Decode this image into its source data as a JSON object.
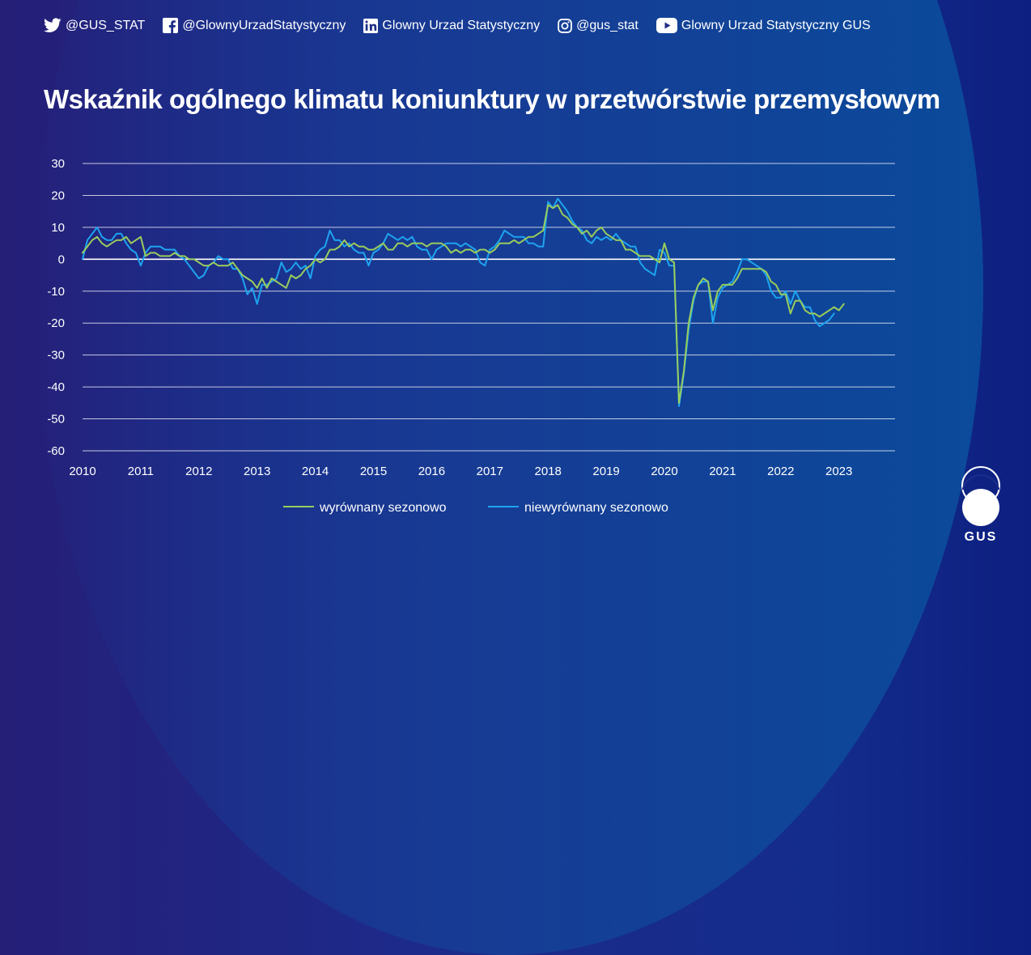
{
  "social": [
    {
      "icon": "twitter-icon",
      "label": "@GUS_STAT"
    },
    {
      "icon": "facebook-icon",
      "label": "@GlownyUrzadStatystyczny"
    },
    {
      "icon": "linkedin-icon",
      "label": "Glowny Urzad Statystyczny"
    },
    {
      "icon": "instagram-icon",
      "label": "@gus_stat"
    },
    {
      "icon": "youtube-icon",
      "label": "Glowny Urzad Statystyczny GUS"
    }
  ],
  "logo_text": "GUS",
  "chart_data": {
    "type": "line",
    "title": "Wskaźnik ogólnego klimatu koniunktury w przetwórstwie przemysłowym",
    "ylim": [
      -60,
      30
    ],
    "y_ticks": [
      "30",
      "20",
      "10",
      "0",
      "-10",
      "-20",
      "-30",
      "-40",
      "-50",
      "-60"
    ],
    "x_ticks": [
      "2010",
      "2011",
      "2012",
      "2013",
      "2014",
      "2015",
      "2016",
      "2017",
      "2018",
      "2019",
      "2020",
      "2021",
      "2022",
      "2023"
    ],
    "x_start": "2010-01",
    "grid": true,
    "legend_position": "bottom",
    "colors": {
      "seasonally_adjusted": "#9acd5c",
      "not_adjusted": "#1ea4f0"
    },
    "series": [
      {
        "name": "wyrównany sezonowo",
        "values": [
          2,
          4,
          6,
          7,
          5,
          4,
          5,
          6,
          6,
          7,
          5,
          6,
          7,
          1,
          2,
          2,
          1,
          1,
          1,
          2,
          1,
          1,
          0,
          0,
          -1,
          -2,
          -2,
          -1,
          -2,
          -2,
          -2,
          -1,
          -3,
          -5,
          -6,
          -7,
          -9,
          -6,
          -9,
          -6,
          -7,
          -8,
          -9,
          -5,
          -6,
          -5,
          -3,
          -2,
          0,
          -1,
          0,
          3,
          3,
          4,
          6,
          4,
          5,
          4,
          4,
          3,
          3,
          4,
          5,
          3,
          3,
          5,
          5,
          4,
          5,
          5,
          5,
          4,
          5,
          5,
          5,
          4,
          2,
          3,
          2,
          3,
          3,
          2,
          3,
          3,
          2,
          3,
          5,
          5,
          5,
          6,
          5,
          6,
          7,
          7,
          8,
          9,
          17,
          16,
          17,
          14,
          13,
          11,
          10,
          8,
          9,
          7,
          9,
          10,
          8,
          7,
          6,
          6,
          3,
          3,
          2,
          1,
          1,
          1,
          0,
          -1,
          5,
          0,
          -1,
          -45,
          -35,
          -20,
          -12,
          -8,
          -6,
          -7,
          -16,
          -10,
          -8,
          -8,
          -8,
          -6,
          -3,
          -3,
          -3,
          -3,
          -3,
          -4,
          -7,
          -8,
          -11,
          -11,
          -17,
          -13,
          -13,
          -16,
          -17,
          -17,
          -18,
          -17,
          -16,
          -15,
          -16,
          -14
        ]
      },
      {
        "name": "niewyrównany sezonowo",
        "values": [
          0,
          6,
          8,
          10,
          7,
          6,
          6,
          8,
          8,
          5,
          3,
          2,
          -2,
          2,
          4,
          4,
          4,
          3,
          3,
          3,
          1,
          0,
          -2,
          -4,
          -6,
          -5,
          -2,
          -1,
          1,
          0,
          0,
          -3,
          -3,
          -6,
          -11,
          -9,
          -14,
          -8,
          -8,
          -7,
          -6,
          -1,
          -4,
          -3,
          -1,
          -3,
          -2,
          -6,
          1,
          3,
          4,
          9,
          6,
          6,
          4,
          5,
          3,
          2,
          2,
          -2,
          2,
          3,
          5,
          8,
          7,
          6,
          7,
          6,
          7,
          4,
          3,
          3,
          0,
          3,
          4,
          5,
          5,
          5,
          4,
          5,
          4,
          3,
          -1,
          -2,
          3,
          4,
          6,
          9,
          8,
          7,
          7,
          7,
          5,
          5,
          4,
          4,
          18,
          16,
          19,
          17,
          15,
          12,
          10,
          9,
          6,
          5,
          7,
          6,
          7,
          6,
          8,
          6,
          5,
          4,
          4,
          -1,
          -3,
          -4,
          -5,
          3,
          2,
          -2,
          -2,
          -46,
          -36,
          -22,
          -13,
          -8,
          -7,
          -7,
          -20,
          -12,
          -9,
          -8,
          -7,
          -4,
          0,
          0,
          -1,
          -2,
          -3,
          -5,
          -10,
          -12,
          -12,
          -10,
          -14,
          -10,
          -13,
          -15,
          -15,
          -19,
          -21,
          -20,
          -19,
          -17
        ]
      }
    ]
  }
}
